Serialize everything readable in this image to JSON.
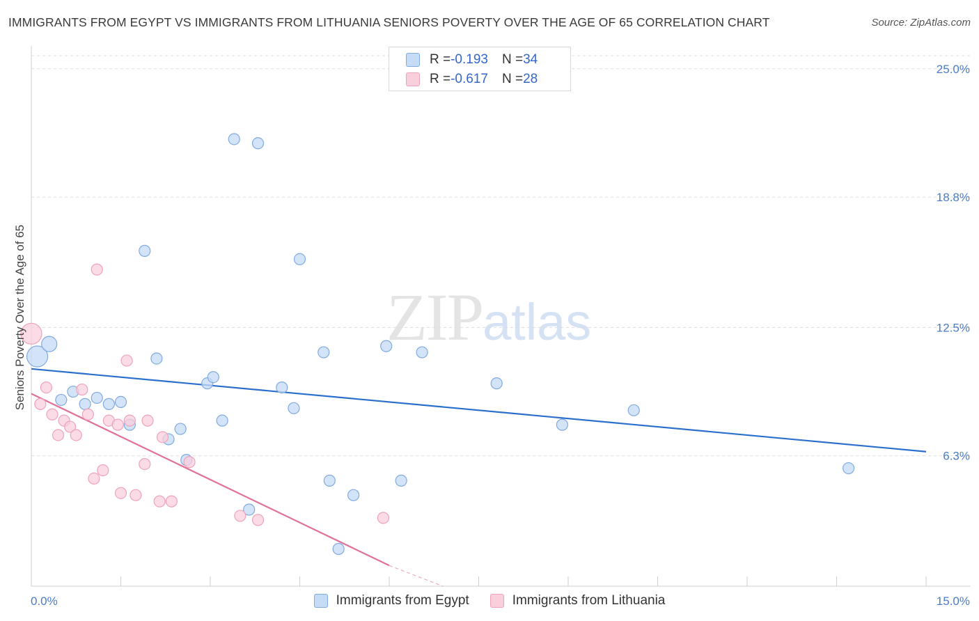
{
  "header": {
    "title": "IMMIGRANTS FROM EGYPT VS IMMIGRANTS FROM LITHUANIA SENIORS POVERTY OVER THE AGE OF 65 CORRELATION CHART",
    "source": "Source: ZipAtlas.com"
  },
  "watermark": {
    "part1": "ZIP",
    "part2": "atlas"
  },
  "legend": {
    "rows": [
      {
        "r_label": "R = ",
        "r_value": "-0.193",
        "n_label": "N = ",
        "n_value": "34"
      },
      {
        "r_label": "R = ",
        "r_value": "-0.617",
        "n_label": "N = ",
        "n_value": "28"
      }
    ]
  },
  "bottom_legend": {
    "egypt": "Immigrants from Egypt",
    "lithuania": "Immigrants from Lithuania"
  },
  "colors": {
    "egypt_fill": "#c6dbf5",
    "egypt_stroke": "#7eaadf",
    "egypt_line": "#2a6fcc",
    "lithuania_fill": "#f9cfdc",
    "lithuania_stroke": "#eea3bb",
    "lithuania_line": "#e0709a",
    "tick_text": "#4a7cc7"
  },
  "chart_data": {
    "type": "scatter",
    "title": "IMMIGRANTS FROM EGYPT VS IMMIGRANTS FROM LITHUANIA SENIORS POVERTY OVER THE AGE OF 65 CORRELATION CHART",
    "xlabel": "",
    "ylabel": "Seniors Poverty Over the Age of 65",
    "xlim": [
      0,
      15
    ],
    "ylim": [
      0,
      25.9
    ],
    "x_tick_labels": [
      "0.0%",
      "15.0%"
    ],
    "y_ticks": [
      6.3,
      12.5,
      18.8,
      25.0
    ],
    "y_tick_labels": [
      "6.3%",
      "12.5%",
      "18.8%",
      "25.0%"
    ],
    "grid": true,
    "legend_position": "top-center",
    "series": [
      {
        "name": "Immigrants from Egypt",
        "points": [
          [
            0.1,
            11.1
          ],
          [
            0.3,
            11.7
          ],
          [
            0.5,
            9.0
          ],
          [
            0.7,
            9.4
          ],
          [
            0.9,
            8.8
          ],
          [
            1.1,
            9.1
          ],
          [
            1.3,
            8.8
          ],
          [
            1.5,
            8.9
          ],
          [
            1.65,
            7.8
          ],
          [
            1.9,
            16.2
          ],
          [
            2.1,
            11.0
          ],
          [
            2.3,
            7.1
          ],
          [
            2.5,
            7.6
          ],
          [
            2.6,
            6.1
          ],
          [
            2.95,
            9.8
          ],
          [
            3.05,
            10.1
          ],
          [
            3.2,
            8.0
          ],
          [
            3.4,
            21.6
          ],
          [
            3.8,
            21.4
          ],
          [
            3.65,
            3.7
          ],
          [
            4.2,
            9.6
          ],
          [
            4.4,
            8.6
          ],
          [
            4.5,
            15.8
          ],
          [
            4.9,
            11.3
          ],
          [
            5.0,
            5.1
          ],
          [
            5.4,
            4.4
          ],
          [
            5.15,
            1.8
          ],
          [
            5.95,
            11.6
          ],
          [
            6.2,
            5.1
          ],
          [
            6.55,
            11.3
          ],
          [
            7.8,
            9.8
          ],
          [
            8.9,
            7.8
          ],
          [
            10.1,
            8.5
          ],
          [
            13.7,
            5.7
          ]
        ],
        "sizes": [
          "xl",
          "l",
          "m",
          "m",
          "m",
          "m",
          "m",
          "m",
          "m",
          "m",
          "m",
          "m",
          "m",
          "m",
          "m",
          "m",
          "m",
          "m",
          "m",
          "m",
          "m",
          "m",
          "m",
          "m",
          "m",
          "m",
          "m",
          "m",
          "m",
          "m",
          "m",
          "m",
          "m",
          "m"
        ],
        "trend": {
          "x": [
            0,
            15
          ],
          "y": [
            10.5,
            6.5
          ]
        }
      },
      {
        "name": "Immigrants from Lithuania",
        "points": [
          [
            0.0,
            12.2
          ],
          [
            0.15,
            8.8
          ],
          [
            0.25,
            9.6
          ],
          [
            0.35,
            8.3
          ],
          [
            0.45,
            7.3
          ],
          [
            0.55,
            8.0
          ],
          [
            0.65,
            7.7
          ],
          [
            0.75,
            7.3
          ],
          [
            0.85,
            9.5
          ],
          [
            0.95,
            8.3
          ],
          [
            1.05,
            5.2
          ],
          [
            1.1,
            15.3
          ],
          [
            1.2,
            5.6
          ],
          [
            1.3,
            8.0
          ],
          [
            1.45,
            7.8
          ],
          [
            1.5,
            4.5
          ],
          [
            1.6,
            10.9
          ],
          [
            1.65,
            8.0
          ],
          [
            1.75,
            4.4
          ],
          [
            1.9,
            5.9
          ],
          [
            1.95,
            8.0
          ],
          [
            2.15,
            4.1
          ],
          [
            2.2,
            7.2
          ],
          [
            2.35,
            4.1
          ],
          [
            2.65,
            6.0
          ],
          [
            3.5,
            3.4
          ],
          [
            3.8,
            3.2
          ],
          [
            5.9,
            3.3
          ]
        ],
        "sizes": [
          "xl",
          "m",
          "m",
          "m",
          "m",
          "m",
          "m",
          "m",
          "m",
          "m",
          "m",
          "m",
          "m",
          "m",
          "m",
          "m",
          "m",
          "m",
          "m",
          "m",
          "m",
          "m",
          "m",
          "m",
          "m",
          "m",
          "m",
          "m"
        ],
        "trend": {
          "x": [
            0,
            6.0
          ],
          "y": [
            9.3,
            1.0
          ],
          "dash_x": [
            6.0,
            6.9
          ],
          "dash_y": [
            1.0,
            -0.1
          ]
        }
      }
    ]
  }
}
